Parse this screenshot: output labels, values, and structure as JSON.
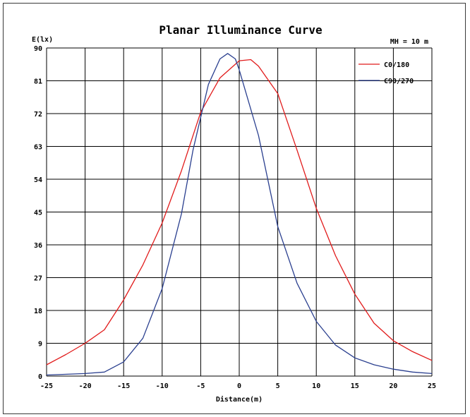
{
  "chart_data": {
    "type": "line",
    "title": "Planar Illuminance Curve",
    "subtitle": "MH = 10 m",
    "xlabel": "Distance(m)",
    "ylabel": "E(lx)",
    "xlim": [
      -25,
      25
    ],
    "ylim": [
      0,
      90
    ],
    "xticks": [
      -25,
      -20,
      -15,
      -10,
      -5,
      0,
      5,
      10,
      15,
      20,
      25
    ],
    "yticks": [
      0,
      9,
      18,
      27,
      36,
      45,
      54,
      63,
      72,
      81,
      90
    ],
    "grid": true,
    "legend_position": "top-right",
    "series": [
      {
        "name": "C0/180",
        "color": "#e11b1b",
        "x": [
          -25,
          -22.5,
          -20,
          -17.5,
          -15,
          -12.5,
          -10,
          -7.5,
          -5,
          -2.5,
          0,
          1.5,
          2.5,
          5,
          7.5,
          10,
          12.5,
          15,
          17.5,
          20,
          22.5,
          25
        ],
        "y": [
          3.1,
          5.9,
          9.0,
          12.7,
          20.9,
          30.5,
          42.0,
          56.3,
          72.4,
          81.8,
          86.5,
          86.8,
          85.0,
          77.5,
          62.0,
          46.0,
          33.0,
          22.5,
          14.5,
          9.7,
          6.7,
          4.3
        ]
      },
      {
        "name": "C90/270",
        "color": "#2a3f8f",
        "x": [
          -25,
          -20,
          -17.5,
          -15,
          -12.5,
          -10,
          -7.5,
          -6,
          -4,
          -2.5,
          -1.5,
          -0.5,
          0,
          2.5,
          5,
          7.5,
          10,
          12.5,
          15,
          17.5,
          20,
          22.5,
          25
        ],
        "y": [
          0.3,
          0.7,
          1.1,
          3.9,
          10.4,
          24.0,
          44.5,
          62.0,
          80.0,
          87.0,
          88.5,
          87.0,
          84.0,
          66.0,
          41.0,
          25.5,
          15.0,
          8.5,
          5.0,
          3.1,
          1.9,
          1.1,
          0.7
        ]
      }
    ]
  }
}
